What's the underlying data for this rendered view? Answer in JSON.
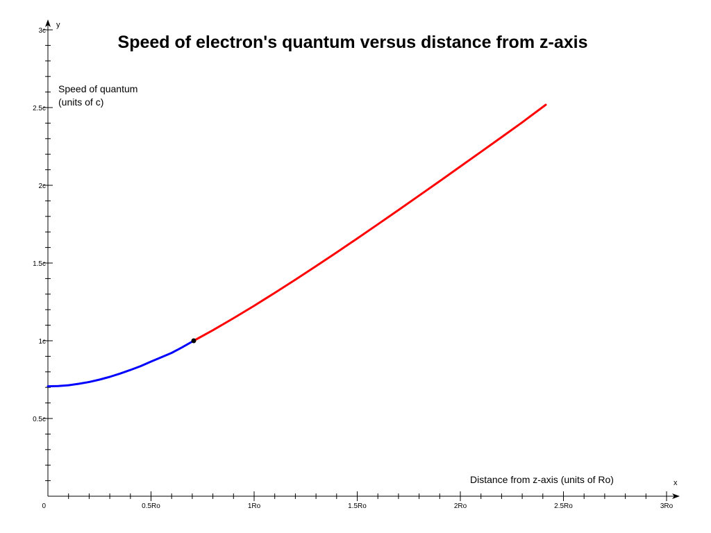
{
  "chart_data": {
    "type": "line",
    "title": "Speed of electron's quantum versus distance from z-axis",
    "xlabel": "Distance from z-axis (units of Ro)",
    "ylabel": [
      "Speed of quantum",
      "(units of c)"
    ],
    "x_axis_letter": "x",
    "y_axis_letter": "y",
    "xlim": [
      0,
      3
    ],
    "ylim": [
      0,
      3
    ],
    "x_ticks": [
      {
        "value": 0,
        "label": "0"
      },
      {
        "value": 0.5,
        "label": "0.5Ro"
      },
      {
        "value": 1,
        "label": "1Ro"
      },
      {
        "value": 1.5,
        "label": "1.5Ro"
      },
      {
        "value": 2,
        "label": "2Ro"
      },
      {
        "value": 2.5,
        "label": "2.5Ro"
      },
      {
        "value": 3,
        "label": "3Ro"
      }
    ],
    "y_ticks": [
      {
        "value": 0.5,
        "label": "0.5c"
      },
      {
        "value": 1,
        "label": "1c"
      },
      {
        "value": 1.5,
        "label": "1.5c"
      },
      {
        "value": 2,
        "label": "2c"
      },
      {
        "value": 2.5,
        "label": "2.5c"
      },
      {
        "value": 3,
        "label": "3c"
      }
    ],
    "minor_tick_step": 0.1,
    "grid": false,
    "series": [
      {
        "color": "#0000ff",
        "x": [
          0,
          0.05,
          0.1,
          0.15,
          0.2,
          0.25,
          0.3,
          0.35,
          0.4,
          0.45,
          0.5,
          0.55,
          0.6,
          0.65,
          0.707
        ],
        "y": [
          0.707,
          0.709,
          0.714,
          0.723,
          0.735,
          0.75,
          0.768,
          0.789,
          0.812,
          0.837,
          0.866,
          0.894,
          0.922,
          0.957,
          1.0
        ]
      },
      {
        "color": "#ff0000",
        "x": [
          0.707,
          0.8,
          0.9,
          1.0,
          1.1,
          1.2,
          1.3,
          1.4,
          1.5,
          1.6,
          1.7,
          1.8,
          1.9,
          2.0,
          2.1,
          2.2,
          2.3,
          2.414
        ],
        "y": [
          1.0,
          1.068,
          1.145,
          1.225,
          1.308,
          1.393,
          1.48,
          1.568,
          1.658,
          1.749,
          1.841,
          1.934,
          2.027,
          2.121,
          2.215,
          2.31,
          2.405,
          2.518
        ]
      }
    ],
    "marker": {
      "x": 0.707,
      "y": 1.0,
      "color": "#000000"
    }
  }
}
